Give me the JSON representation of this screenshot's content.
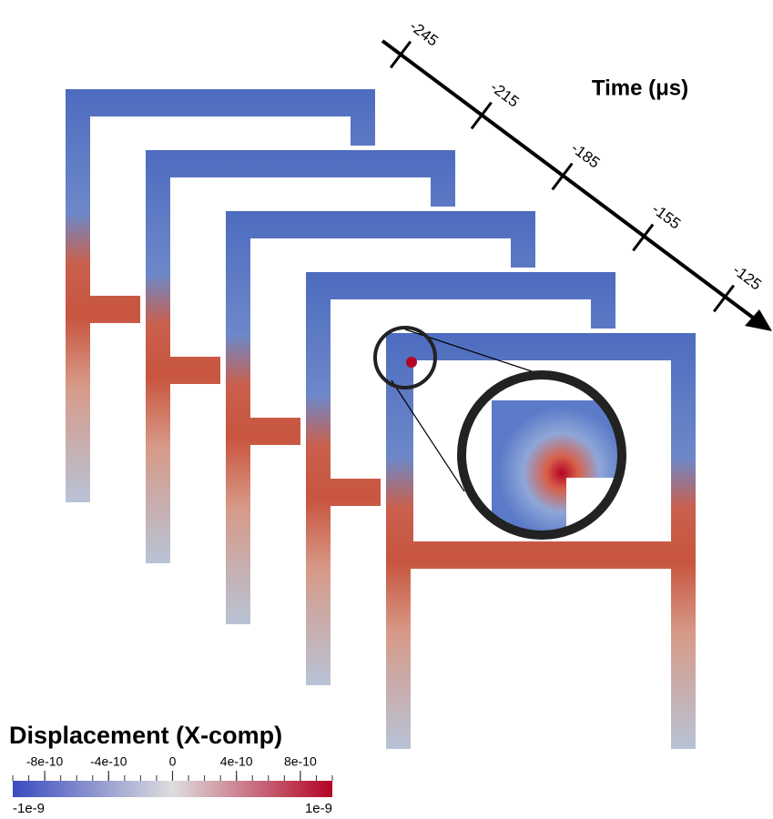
{
  "time_axis": {
    "label": "Time (μs)",
    "ticks": [
      -245,
      -215,
      -185,
      -155,
      -125
    ]
  },
  "colorbar": {
    "title": "Displacement (X-comp)",
    "lim": [
      {
        "value": -1e-09,
        "label": "-1e-9"
      },
      {
        "value": 1e-09,
        "label": "1e-9"
      }
    ],
    "ticks": [
      {
        "value": -8e-10,
        "label": "-8e-10"
      },
      {
        "value": -4e-10,
        "label": "-4e-10"
      },
      {
        "value": 0,
        "label": "0"
      },
      {
        "value": 4e-10,
        "label": "4e-10"
      },
      {
        "value": 8e-10,
        "label": "8e-10"
      }
    ]
  }
}
